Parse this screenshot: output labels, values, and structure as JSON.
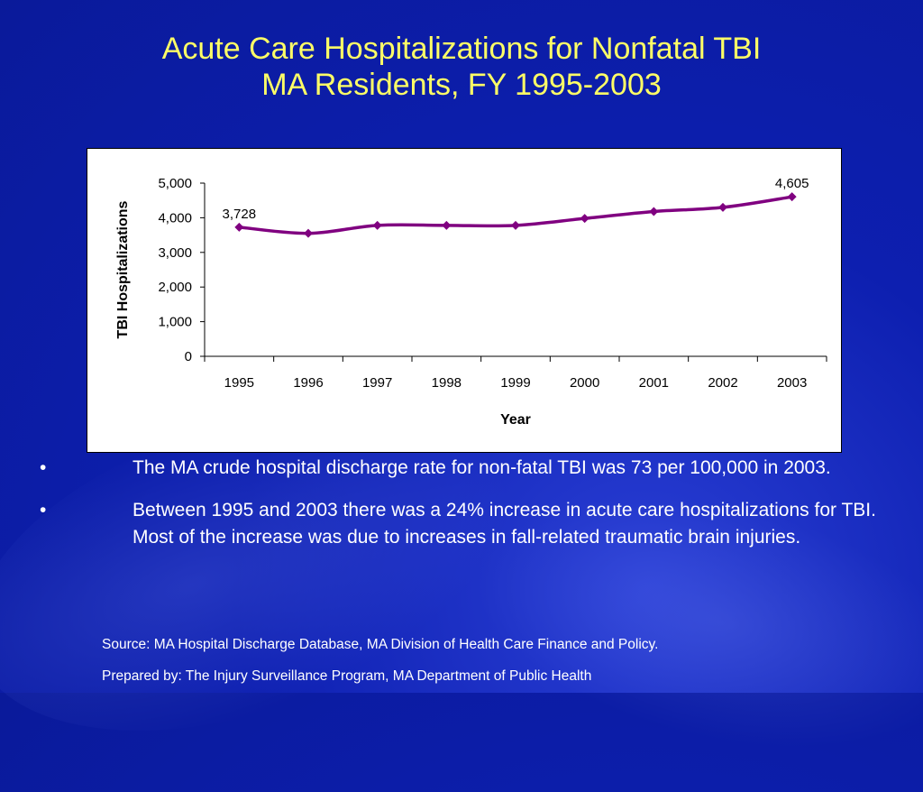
{
  "title": {
    "line1": "Acute Care Hospitalizations for Nonfatal TBI",
    "line2": "MA Residents, FY 1995-2003"
  },
  "chart_data": {
    "type": "line",
    "xlabel": "Year",
    "ylabel": "TBI Hospitalizations",
    "ylim": [
      0,
      5000
    ],
    "yticks": [
      "0",
      "1,000",
      "2,000",
      "3,000",
      "4,000",
      "5,000"
    ],
    "categories": [
      "1995",
      "1996",
      "1997",
      "1998",
      "1999",
      "2000",
      "2001",
      "2002",
      "2003"
    ],
    "series": [
      {
        "values": [
          3728,
          3550,
          3780,
          3780,
          3780,
          3980,
          4180,
          4300,
          4605
        ],
        "color": "#800080"
      }
    ],
    "data_labels": [
      {
        "index": 0,
        "text": "3,728"
      },
      {
        "index": 8,
        "text": "4,605"
      }
    ],
    "grid": false,
    "legend": "none"
  },
  "bullets": [
    {
      "marker": "•",
      "text": "The MA crude hospital discharge rate for non-fatal TBI was 73 per 100,000 in 2003."
    },
    {
      "marker": "•",
      "text": "Between 1995 and 2003 there was a 24% increase in acute care hospitalizations for TBI. Most of the increase was due to increases in fall-related traumatic brain injuries."
    }
  ],
  "footer": {
    "source": "Source:  MA Hospital Discharge Database, MA Division of Health Care Finance and Policy.",
    "prepared_by": "Prepared by: The Injury Surveillance Program, MA Department of Public Health"
  },
  "colors": {
    "background": "#0d1fb0",
    "title": "#ffff66",
    "text": "#ffffff",
    "series": "#800080"
  }
}
